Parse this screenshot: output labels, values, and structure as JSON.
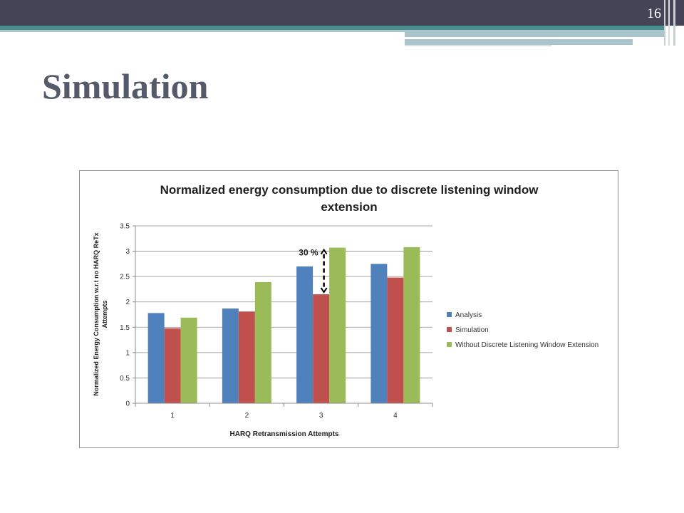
{
  "slide": {
    "page_number": "16",
    "title": "Simulation"
  },
  "theme": {
    "header_bar": "#434556",
    "accent_stripe": "#4a8e8e",
    "light_stripe": "#a9c5cb",
    "title_color": "#555a6a"
  },
  "chart_data": {
    "type": "bar",
    "title_line1": "Normalized energy consumption due to discrete listening window",
    "title_line2": "extension",
    "xlabel": "HARQ Retransmission Attempts",
    "ylabel_line1": "Normalized Energy Consumption w.r.t no HARQ ReTx",
    "ylabel_line2": "Attempts",
    "categories": [
      "1",
      "2",
      "3",
      "4"
    ],
    "ylim": [
      0,
      3.5
    ],
    "yticks": [
      "0",
      "0.5",
      "1",
      "1.5",
      "2",
      "2.5",
      "3",
      "3.5"
    ],
    "grid": true,
    "legend_position": "right",
    "series": [
      {
        "name": "Analysis",
        "color": "#4f81bd",
        "values": [
          1.78,
          1.87,
          2.7,
          2.75
        ]
      },
      {
        "name": "Simulation",
        "color": "#c0504d",
        "values": [
          1.48,
          1.81,
          2.15,
          2.48
        ]
      },
      {
        "name": "Without Discrete Listening Window Extension",
        "color": "#9bbb59",
        "values": [
          1.69,
          2.39,
          3.07,
          3.08
        ]
      }
    ],
    "annotation": {
      "text": "30 %",
      "category": "3",
      "from": 2.15,
      "to": 3.07
    }
  }
}
